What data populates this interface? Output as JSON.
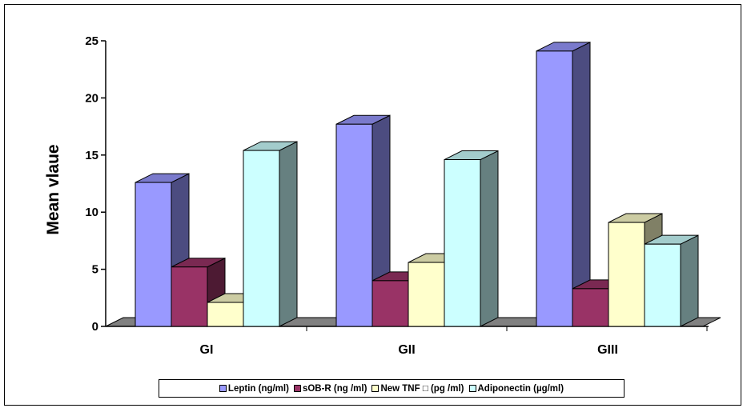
{
  "chart_data": {
    "type": "bar",
    "categories": [
      "GI",
      "GII",
      "GIII"
    ],
    "series": [
      {
        "name": "Leptin (ng/ml)",
        "values": [
          12.6,
          17.7,
          24.1
        ]
      },
      {
        "name": "sOB-R  (ng /ml)",
        "values": [
          5.2,
          4.0,
          3.3
        ]
      },
      {
        "name": "New TNF □ (pg /ml)",
        "values": [
          2.1,
          5.6,
          9.1
        ]
      },
      {
        "name": "Adiponectin (µg/ml)",
        "values": [
          15.4,
          14.6,
          7.2
        ]
      }
    ],
    "title": "",
    "xlabel": "",
    "ylabel": "Mean vlaue",
    "ylim": [
      0,
      25
    ],
    "yticks": [
      "0",
      "5",
      "10",
      "15",
      "20",
      "25"
    ],
    "grid": false,
    "legend_position": "bottom",
    "style": "3d-clustered-column"
  },
  "colors": {
    "series_front": [
      "#9999ff",
      "#993366",
      "#ffffcc",
      "#ccffff"
    ],
    "series_side": [
      "#4c4c80",
      "#4d1a33",
      "#808066",
      "#668080"
    ],
    "series_top": [
      "#7a7acc",
      "#7a2952",
      "#cccca3",
      "#a3cccc"
    ],
    "floor": "#808080"
  }
}
